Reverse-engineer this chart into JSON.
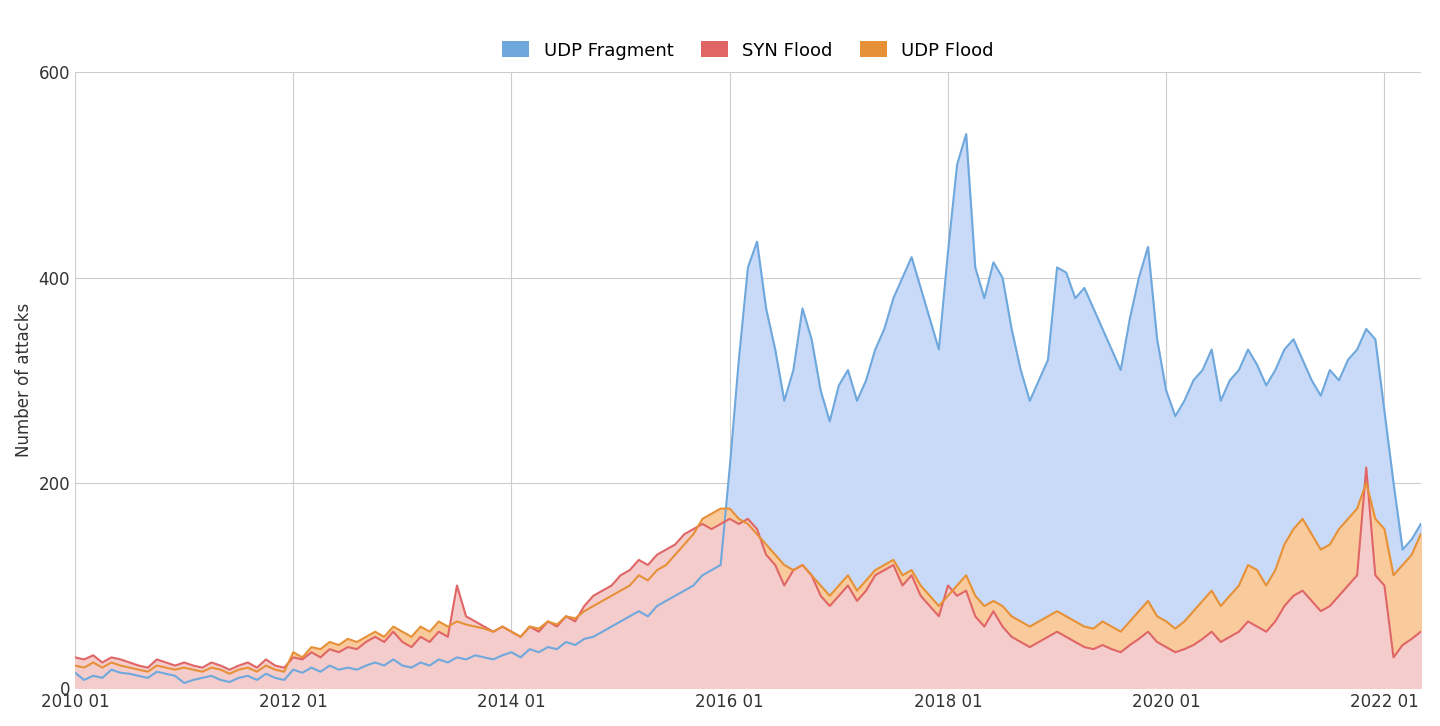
{
  "title": "",
  "ylabel": "Number of attacks",
  "xlabel": "",
  "ylim": [
    0,
    600
  ],
  "yticks": [
    0,
    200,
    400,
    600
  ],
  "legend_labels": [
    "UDP Fragment",
    "SYN Flood",
    "UDP Flood"
  ],
  "legend_colors": [
    "#6fa8dc",
    "#e06666",
    "#e69138"
  ],
  "bg_color": "#ffffff",
  "grid_color": "#cccccc",
  "udp_fragment_fill": "#c9daf8",
  "udp_flood_fill": "#f9cb9c",
  "syn_flood_fill": "#f4cccc",
  "udp_fragment": [
    15,
    8,
    12,
    10,
    18,
    15,
    14,
    12,
    10,
    16,
    14,
    12,
    5,
    8,
    10,
    12,
    8,
    6,
    10,
    12,
    8,
    14,
    10,
    8,
    18,
    15,
    20,
    16,
    22,
    18,
    20,
    18,
    22,
    25,
    22,
    28,
    22,
    20,
    25,
    22,
    28,
    25,
    30,
    28,
    32,
    30,
    28,
    32,
    35,
    30,
    38,
    35,
    40,
    38,
    45,
    42,
    48,
    50,
    55,
    60,
    65,
    70,
    75,
    70,
    80,
    85,
    90,
    95,
    100,
    110,
    115,
    120,
    215,
    320,
    410,
    435,
    370,
    330,
    280,
    310,
    370,
    340,
    290,
    260,
    295,
    310,
    280,
    300,
    330,
    350,
    380,
    400,
    420,
    390,
    360,
    330,
    425,
    510,
    540,
    410,
    380,
    415,
    400,
    350,
    310,
    280,
    300,
    320,
    410,
    405,
    380,
    390,
    370,
    350,
    330,
    310,
    360,
    400,
    430,
    340,
    290,
    265,
    280,
    300,
    310,
    330,
    280,
    300,
    310,
    330,
    315,
    295,
    310,
    330,
    340,
    320,
    300,
    285,
    310,
    300,
    320,
    330,
    350,
    340,
    270,
    200,
    135,
    145,
    160
  ],
  "syn_flood": [
    30,
    28,
    32,
    25,
    30,
    28,
    25,
    22,
    20,
    28,
    25,
    22,
    25,
    22,
    20,
    25,
    22,
    18,
    22,
    25,
    20,
    28,
    22,
    20,
    30,
    28,
    35,
    30,
    38,
    35,
    40,
    38,
    45,
    50,
    45,
    55,
    45,
    40,
    50,
    45,
    55,
    50,
    100,
    70,
    65,
    60,
    55,
    60,
    55,
    50,
    60,
    55,
    65,
    60,
    70,
    65,
    80,
    90,
    95,
    100,
    110,
    115,
    125,
    120,
    130,
    135,
    140,
    150,
    155,
    160,
    155,
    160,
    165,
    160,
    165,
    155,
    130,
    120,
    100,
    115,
    120,
    110,
    90,
    80,
    90,
    100,
    85,
    95,
    110,
    115,
    120,
    100,
    110,
    90,
    80,
    70,
    100,
    90,
    95,
    70,
    60,
    75,
    60,
    50,
    45,
    40,
    45,
    50,
    55,
    50,
    45,
    40,
    38,
    42,
    38,
    35,
    42,
    48,
    55,
    45,
    40,
    35,
    38,
    42,
    48,
    55,
    45,
    50,
    55,
    65,
    60,
    55,
    65,
    80,
    90,
    95,
    85,
    75,
    80,
    90,
    100,
    110,
    215,
    110,
    100,
    30,
    42,
    48,
    55
  ],
  "udp_flood": [
    22,
    20,
    25,
    20,
    25,
    22,
    20,
    18,
    16,
    22,
    20,
    18,
    20,
    18,
    16,
    20,
    18,
    14,
    18,
    20,
    16,
    22,
    18,
    16,
    35,
    30,
    40,
    38,
    45,
    42,
    48,
    45,
    50,
    55,
    50,
    60,
    55,
    50,
    60,
    55,
    65,
    60,
    65,
    62,
    60,
    58,
    55,
    60,
    55,
    50,
    60,
    58,
    65,
    62,
    70,
    68,
    75,
    80,
    85,
    90,
    95,
    100,
    110,
    105,
    115,
    120,
    130,
    140,
    150,
    165,
    170,
    175,
    175,
    165,
    160,
    150,
    140,
    130,
    120,
    115,
    120,
    110,
    100,
    90,
    100,
    110,
    95,
    105,
    115,
    120,
    125,
    110,
    115,
    100,
    90,
    80,
    90,
    100,
    110,
    90,
    80,
    85,
    80,
    70,
    65,
    60,
    65,
    70,
    75,
    70,
    65,
    60,
    58,
    65,
    60,
    55,
    65,
    75,
    85,
    70,
    65,
    58,
    65,
    75,
    85,
    95,
    80,
    90,
    100,
    120,
    115,
    100,
    115,
    140,
    155,
    165,
    150,
    135,
    140,
    155,
    165,
    175,
    200,
    165,
    155,
    110,
    120,
    130,
    150
  ],
  "x_tick_labels": [
    "2010 01",
    "2012 01",
    "2014 01",
    "2016 01",
    "2018 01",
    "2020 01",
    "2022 01"
  ],
  "x_tick_positions": [
    0,
    24,
    48,
    72,
    96,
    120,
    144
  ]
}
